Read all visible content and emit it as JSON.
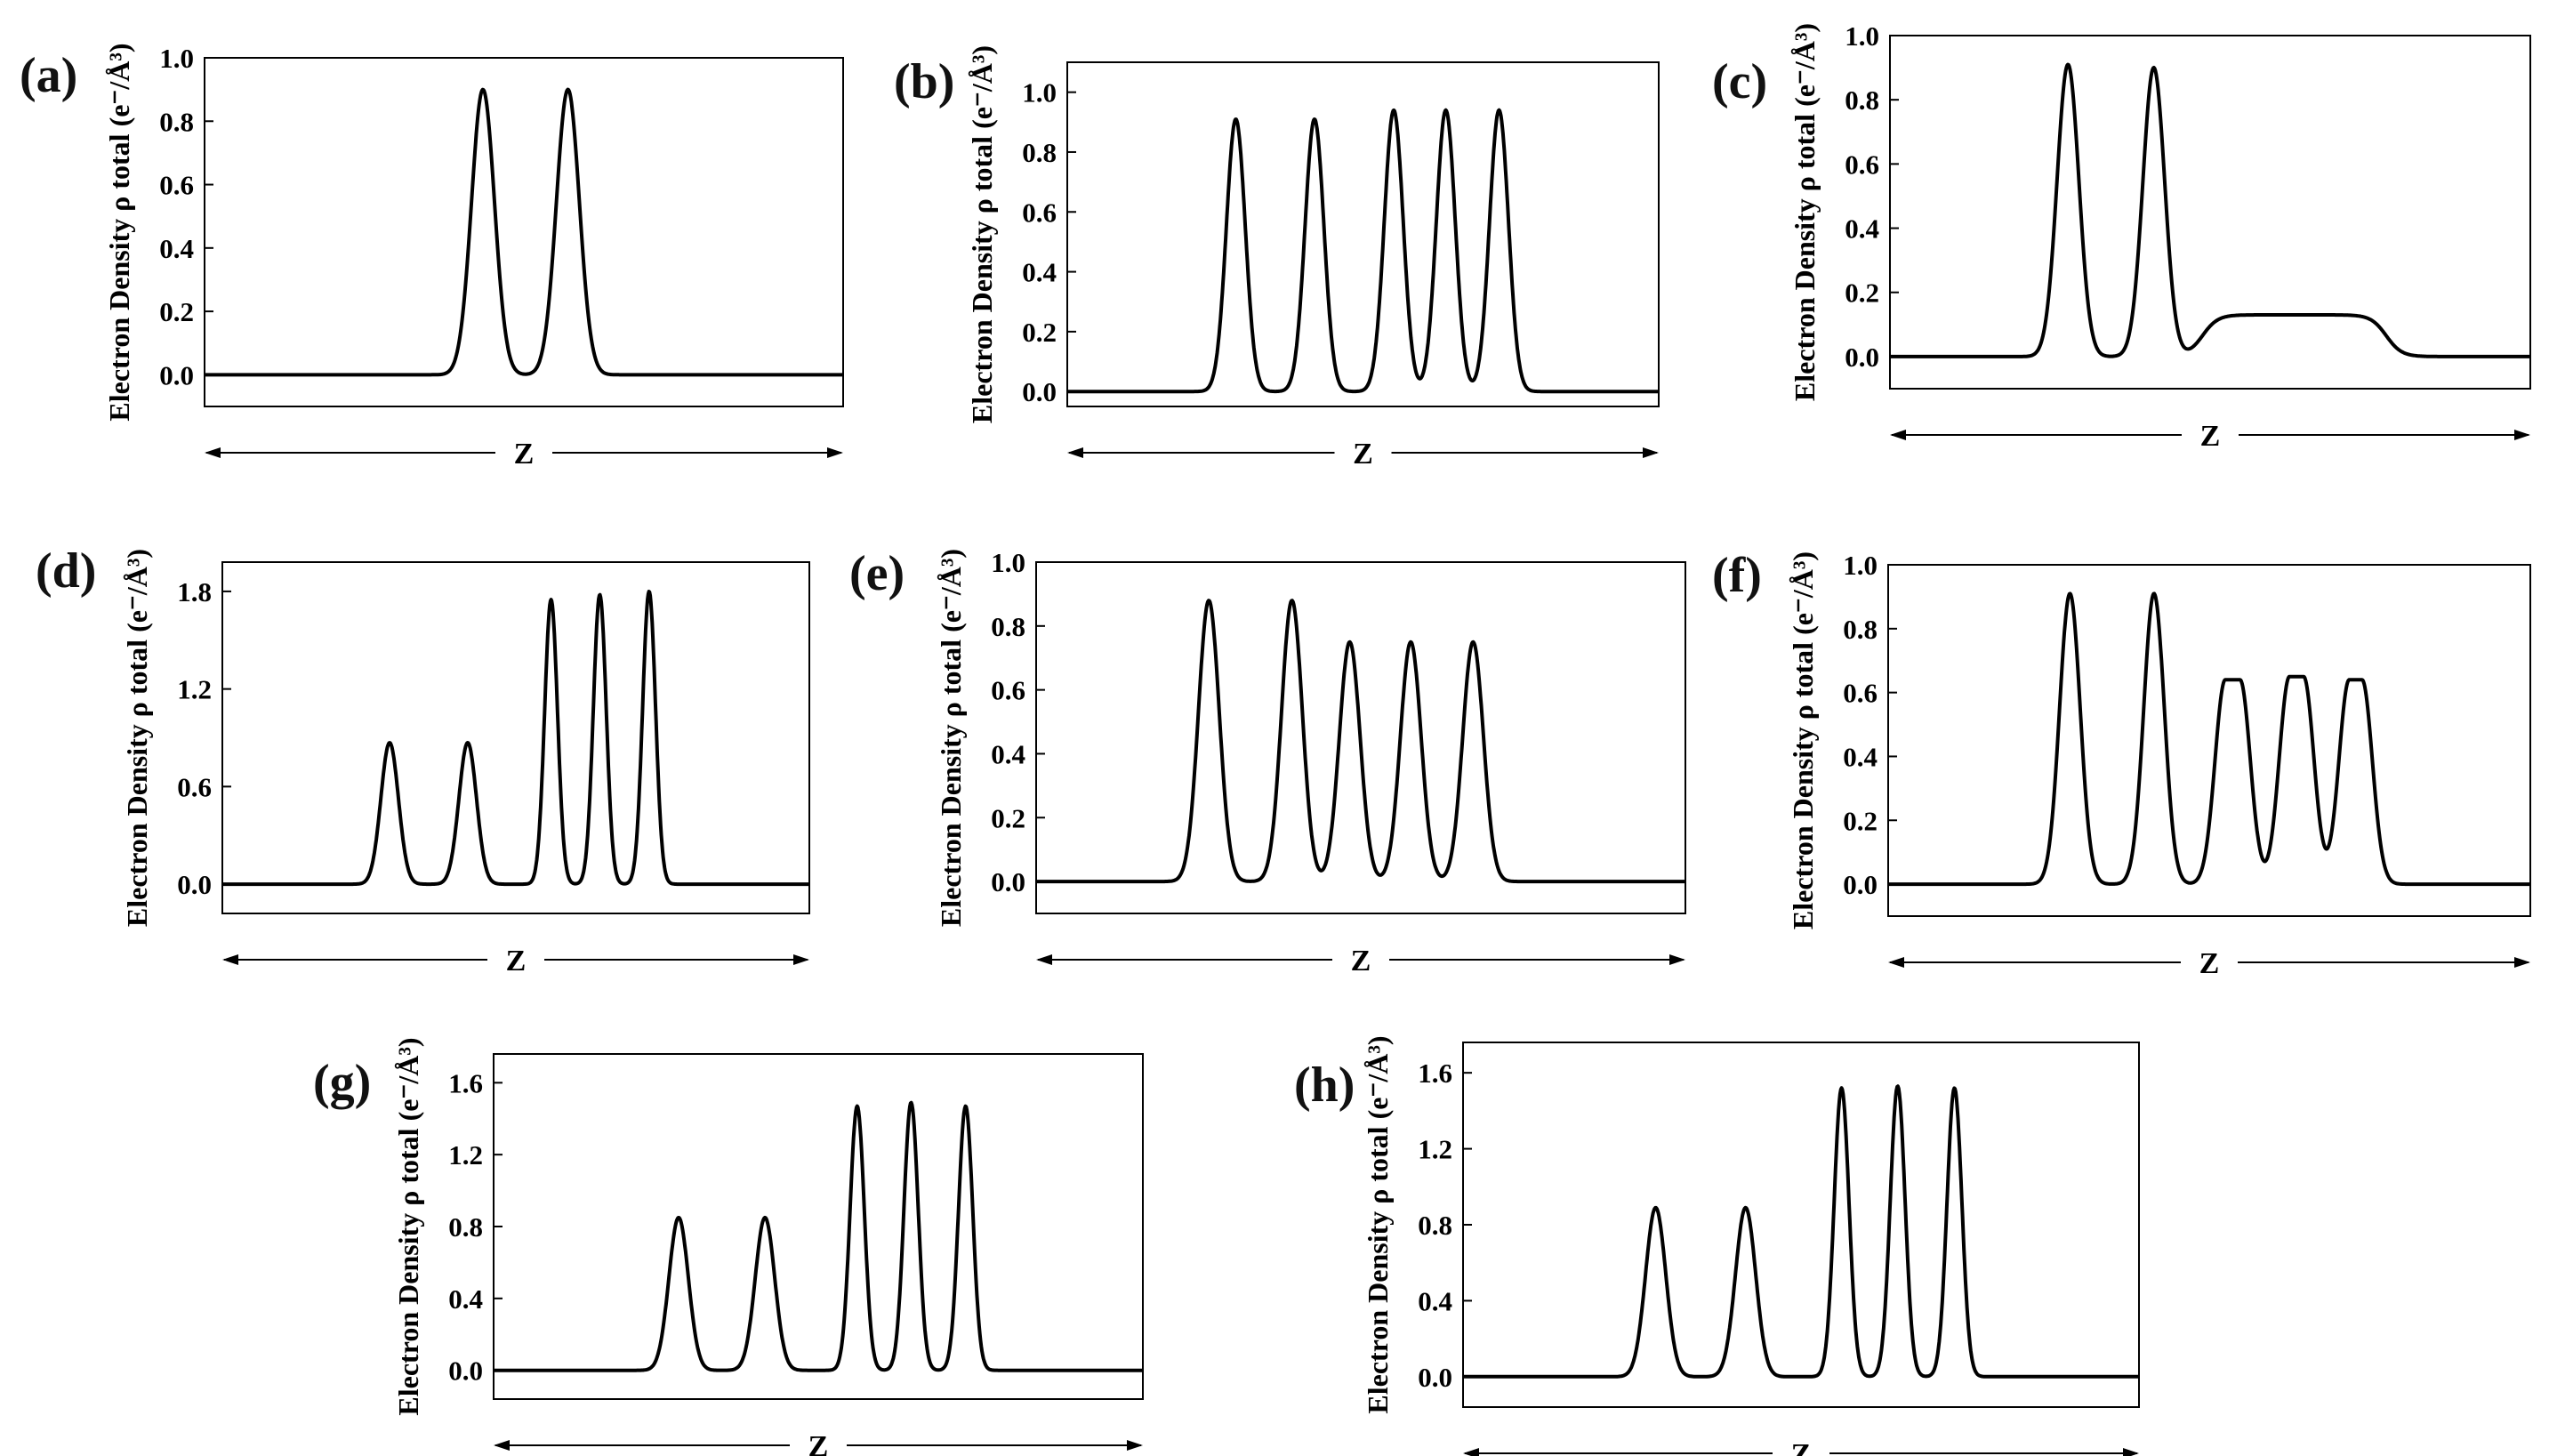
{
  "figure": {
    "panels": [
      "(a)",
      "(b)",
      "(c)",
      "(d)",
      "(e)",
      "(f)",
      "(g)",
      "(h)"
    ]
  },
  "chart_data": [
    {
      "panel": "(a)",
      "type": "line",
      "ylabel": "Electron Density ρ total (e⁻/Å³)",
      "xlabel": "Z",
      "ylim": [
        -0.1,
        1.0
      ],
      "yticks": [
        0.0,
        0.2,
        0.4,
        0.6,
        0.8,
        1.0
      ],
      "yticklabels": [
        "0.0",
        "0.2",
        "0.4",
        "0.6",
        "0.8",
        "1.0"
      ],
      "xlim": [
        0,
        1
      ],
      "grid": false,
      "peaks": [
        {
          "x": 0.436,
          "height": 0.9,
          "width": 0.018
        },
        {
          "x": 0.569,
          "height": 0.9,
          "width": 0.018
        }
      ]
    },
    {
      "panel": "(b)",
      "type": "line",
      "ylabel": "Electron Density ρ total (e⁻/Å³)",
      "xlabel": "Z",
      "ylim": [
        -0.05,
        1.1
      ],
      "yticks": [
        0.0,
        0.2,
        0.4,
        0.6,
        0.8,
        1.0
      ],
      "yticklabels": [
        "0.0",
        "0.2",
        "0.4",
        "0.6",
        "0.8",
        "1.0"
      ],
      "xlim": [
        0,
        1
      ],
      "grid": false,
      "peaks": [
        {
          "x": 0.285,
          "height": 0.91,
          "width": 0.016
        },
        {
          "x": 0.418,
          "height": 0.91,
          "width": 0.016
        },
        {
          "x": 0.552,
          "height": 0.94,
          "width": 0.016
        },
        {
          "x": 0.64,
          "height": 0.94,
          "width": 0.016
        },
        {
          "x": 0.73,
          "height": 0.94,
          "width": 0.016
        }
      ]
    },
    {
      "panel": "(c)",
      "type": "line",
      "ylabel": "Electron Density ρ total (e⁻/Å³)",
      "xlabel": "Z",
      "ylim": [
        -0.1,
        1.0
      ],
      "yticks": [
        0.0,
        0.2,
        0.4,
        0.6,
        0.8,
        1.0
      ],
      "yticklabels": [
        "0.0",
        "0.2",
        "0.4",
        "0.6",
        "0.8",
        "1.0"
      ],
      "xlim": [
        0,
        1
      ],
      "grid": false,
      "peaks": [
        {
          "x": 0.278,
          "height": 0.91,
          "width": 0.017
        },
        {
          "x": 0.412,
          "height": 0.9,
          "width": 0.017
        }
      ],
      "plateau": {
        "start": 0.488,
        "end": 0.775,
        "height": 0.13
      }
    },
    {
      "panel": "(d)",
      "type": "line",
      "ylabel": "Electron Density ρ total (e⁻/Å³)",
      "xlabel": "Z",
      "ylim": [
        -0.18,
        1.98
      ],
      "yticks": [
        0.0,
        0.6,
        1.2,
        1.8
      ],
      "yticklabels": [
        "0.0",
        "0.6",
        "1.2",
        "1.8"
      ],
      "xlim": [
        0,
        1
      ],
      "grid": false,
      "peaks": [
        {
          "x": 0.285,
          "height": 0.87,
          "width": 0.015
        },
        {
          "x": 0.418,
          "height": 0.87,
          "width": 0.015
        },
        {
          "x": 0.56,
          "height": 1.75,
          "width": 0.011
        },
        {
          "x": 0.643,
          "height": 1.78,
          "width": 0.011
        },
        {
          "x": 0.727,
          "height": 1.8,
          "width": 0.011
        }
      ]
    },
    {
      "panel": "(e)",
      "type": "line",
      "ylabel": "Electron Density ρ total (e⁻/Å³)",
      "xlabel": "Z",
      "ylim": [
        -0.1,
        1.0
      ],
      "yticks": [
        0.0,
        0.2,
        0.4,
        0.6,
        0.8,
        1.0
      ],
      "yticklabels": [
        "0.0",
        "0.2",
        "0.4",
        "0.6",
        "0.8",
        "1.0"
      ],
      "xlim": [
        0,
        1
      ],
      "grid": false,
      "peaks": [
        {
          "x": 0.266,
          "height": 0.88,
          "width": 0.016
        },
        {
          "x": 0.394,
          "height": 0.88,
          "width": 0.016
        },
        {
          "x": 0.483,
          "height": 0.75,
          "width": 0.016
        },
        {
          "x": 0.577,
          "height": 0.75,
          "width": 0.016
        },
        {
          "x": 0.673,
          "height": 0.75,
          "width": 0.016
        }
      ]
    },
    {
      "panel": "(f)",
      "type": "line",
      "ylabel": "Electron Density ρ total (e⁻/Å³)",
      "xlabel": "Z",
      "ylim": [
        -0.1,
        1.0
      ],
      "yticks": [
        0.0,
        0.2,
        0.4,
        0.6,
        0.8,
        1.0
      ],
      "yticklabels": [
        "0.0",
        "0.2",
        "0.4",
        "0.6",
        "0.8",
        "1.0"
      ],
      "xlim": [
        0,
        1
      ],
      "grid": false,
      "peaks": [
        {
          "x": 0.283,
          "height": 0.91,
          "width": 0.016
        },
        {
          "x": 0.414,
          "height": 0.91,
          "width": 0.016
        }
      ],
      "flat_peaks": [
        {
          "start": 0.525,
          "end": 0.548,
          "height": 0.64
        },
        {
          "start": 0.625,
          "end": 0.647,
          "height": 0.65
        },
        {
          "start": 0.718,
          "end": 0.738,
          "height": 0.64
        }
      ]
    },
    {
      "panel": "(g)",
      "type": "line",
      "ylabel": "Electron Density ρ total (e⁻/Å³)",
      "xlabel": "Z",
      "ylim": [
        -0.16,
        1.76
      ],
      "yticks": [
        0.0,
        0.4,
        0.8,
        1.2,
        1.6
      ],
      "yticklabels": [
        "0.0",
        "0.4",
        "0.8",
        "1.2",
        "1.6"
      ],
      "xlim": [
        0,
        1
      ],
      "grid": false,
      "peaks": [
        {
          "x": 0.285,
          "height": 0.85,
          "width": 0.015
        },
        {
          "x": 0.418,
          "height": 0.85,
          "width": 0.015
        },
        {
          "x": 0.56,
          "height": 1.47,
          "width": 0.011
        },
        {
          "x": 0.643,
          "height": 1.49,
          "width": 0.011
        },
        {
          "x": 0.727,
          "height": 1.47,
          "width": 0.011
        }
      ]
    },
    {
      "panel": "(h)",
      "type": "line",
      "ylabel": "Electron Density ρ total (e⁻/Å³)",
      "xlabel": "Z",
      "ylim": [
        -0.16,
        1.76
      ],
      "yticks": [
        0.0,
        0.4,
        0.8,
        1.2,
        1.6
      ],
      "yticklabels": [
        "0.0",
        "0.4",
        "0.8",
        "1.2",
        "1.6"
      ],
      "xlim": [
        0,
        1
      ],
      "grid": false,
      "peaks": [
        {
          "x": 0.285,
          "height": 0.89,
          "width": 0.015
        },
        {
          "x": 0.418,
          "height": 0.89,
          "width": 0.015
        },
        {
          "x": 0.56,
          "height": 1.52,
          "width": 0.011
        },
        {
          "x": 0.643,
          "height": 1.53,
          "width": 0.011
        },
        {
          "x": 0.727,
          "height": 1.52,
          "width": 0.011
        }
      ]
    }
  ]
}
